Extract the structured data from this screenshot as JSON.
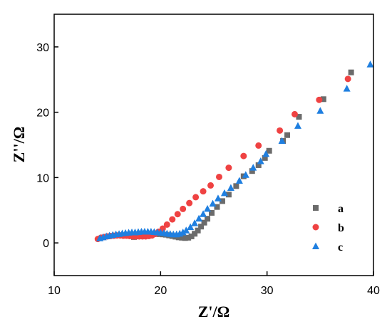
{
  "chart_data": {
    "type": "scatter",
    "xlabel": "Z'/Ω",
    "ylabel": "Z''/Ω",
    "xlim": [
      10,
      40
    ],
    "ylim": [
      -5,
      35
    ],
    "xticks": [
      10,
      20,
      30,
      40
    ],
    "yticks": [
      0,
      10,
      20,
      30
    ],
    "grid": false,
    "legend": "right-lower",
    "series": [
      {
        "name": "a",
        "marker": "square",
        "color": "#6b6b6b",
        "points": [
          [
            17.5,
            0.9
          ],
          [
            17.8,
            1.0
          ],
          [
            18.1,
            1.1
          ],
          [
            18.4,
            1.2
          ],
          [
            18.7,
            1.25
          ],
          [
            19.0,
            1.3
          ],
          [
            19.3,
            1.35
          ],
          [
            19.6,
            1.35
          ],
          [
            19.9,
            1.35
          ],
          [
            20.2,
            1.3
          ],
          [
            20.5,
            1.25
          ],
          [
            20.8,
            1.15
          ],
          [
            21.1,
            1.05
          ],
          [
            21.4,
            0.95
          ],
          [
            21.7,
            0.85
          ],
          [
            22.0,
            0.8
          ],
          [
            22.3,
            0.75
          ],
          [
            22.6,
            0.8
          ],
          [
            22.9,
            1.0
          ],
          [
            23.2,
            1.4
          ],
          [
            23.5,
            1.9
          ],
          [
            23.8,
            2.5
          ],
          [
            24.1,
            3.1
          ],
          [
            24.4,
            3.7
          ],
          [
            24.8,
            4.6
          ],
          [
            25.3,
            5.5
          ],
          [
            25.8,
            6.4
          ],
          [
            26.4,
            7.4
          ],
          [
            27.1,
            8.7
          ],
          [
            27.8,
            10.2
          ],
          [
            28.6,
            11.0
          ],
          [
            29.2,
            11.9
          ],
          [
            29.8,
            13.0
          ],
          [
            30.2,
            14.1
          ],
          [
            31.5,
            15.6
          ],
          [
            31.9,
            16.5
          ],
          [
            33.0,
            19.3
          ],
          [
            35.3,
            22.0
          ],
          [
            37.9,
            26.1
          ]
        ]
      },
      {
        "name": "b",
        "marker": "circle",
        "color": "#ef4242",
        "points": [
          [
            14.1,
            0.6
          ],
          [
            14.4,
            0.8
          ],
          [
            14.7,
            0.9
          ],
          [
            15.0,
            1.0
          ],
          [
            15.3,
            1.05
          ],
          [
            15.6,
            1.1
          ],
          [
            15.9,
            1.15
          ],
          [
            16.2,
            1.15
          ],
          [
            16.5,
            1.1
          ],
          [
            16.8,
            1.1
          ],
          [
            17.1,
            1.05
          ],
          [
            17.4,
            1.0
          ],
          [
            17.7,
            1.0
          ],
          [
            18.0,
            1.0
          ],
          [
            18.3,
            1.0
          ],
          [
            18.6,
            1.0
          ],
          [
            18.9,
            1.05
          ],
          [
            19.2,
            1.15
          ],
          [
            19.5,
            1.4
          ],
          [
            19.8,
            1.7
          ],
          [
            20.2,
            2.2
          ],
          [
            20.6,
            2.8
          ],
          [
            21.1,
            3.6
          ],
          [
            21.6,
            4.4
          ],
          [
            22.1,
            5.2
          ],
          [
            22.7,
            6.1
          ],
          [
            23.3,
            7.0
          ],
          [
            24.0,
            7.9
          ],
          [
            24.7,
            8.8
          ],
          [
            25.5,
            10.1
          ],
          [
            26.4,
            11.5
          ],
          [
            27.8,
            13.3
          ],
          [
            29.2,
            14.9
          ],
          [
            31.2,
            17.2
          ],
          [
            32.6,
            19.7
          ],
          [
            34.9,
            21.9
          ],
          [
            37.6,
            25.1
          ]
        ]
      },
      {
        "name": "c",
        "marker": "triangle",
        "color": "#1f7fe0",
        "points": [
          [
            14.3,
            0.7
          ],
          [
            14.6,
            0.85
          ],
          [
            14.9,
            1.0
          ],
          [
            15.2,
            1.1
          ],
          [
            15.5,
            1.2
          ],
          [
            15.8,
            1.3
          ],
          [
            16.1,
            1.35
          ],
          [
            16.4,
            1.45
          ],
          [
            16.7,
            1.5
          ],
          [
            17.0,
            1.55
          ],
          [
            17.3,
            1.6
          ],
          [
            17.6,
            1.6
          ],
          [
            17.9,
            1.65
          ],
          [
            18.2,
            1.7
          ],
          [
            18.5,
            1.7
          ],
          [
            18.8,
            1.7
          ],
          [
            19.1,
            1.7
          ],
          [
            19.4,
            1.65
          ],
          [
            19.7,
            1.6
          ],
          [
            20.0,
            1.55
          ],
          [
            20.3,
            1.5
          ],
          [
            20.6,
            1.4
          ],
          [
            20.9,
            1.35
          ],
          [
            21.2,
            1.3
          ],
          [
            21.5,
            1.3
          ],
          [
            21.8,
            1.4
          ],
          [
            22.1,
            1.6
          ],
          [
            22.4,
            1.9
          ],
          [
            22.8,
            2.4
          ],
          [
            23.2,
            3.0
          ],
          [
            23.6,
            3.7
          ],
          [
            24.0,
            4.4
          ],
          [
            24.4,
            5.2
          ],
          [
            24.9,
            6.0
          ],
          [
            25.4,
            6.8
          ],
          [
            26.0,
            7.6
          ],
          [
            26.6,
            8.4
          ],
          [
            27.4,
            9.5
          ],
          [
            28.0,
            10.4
          ],
          [
            28.7,
            11.5
          ],
          [
            29.4,
            12.5
          ],
          [
            29.9,
            13.6
          ],
          [
            31.4,
            15.6
          ],
          [
            32.9,
            17.9
          ],
          [
            35.0,
            20.2
          ],
          [
            37.5,
            23.6
          ],
          [
            39.7,
            27.3
          ]
        ]
      }
    ]
  }
}
